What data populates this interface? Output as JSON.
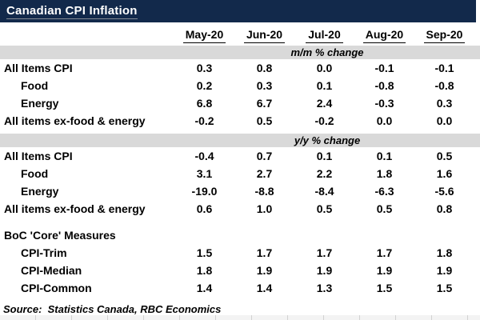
{
  "title": "Canadian CPI Inflation",
  "columns": [
    "May-20",
    "Jun-20",
    "Jul-20",
    "Aug-20",
    "Sep-20"
  ],
  "sections": [
    {
      "label": "m/m % change",
      "rows": [
        {
          "label": "All Items CPI",
          "values": [
            "0.3",
            "0.8",
            "0.0",
            "-0.1",
            "-0.1"
          ]
        },
        {
          "label": "Food",
          "values": [
            "0.2",
            "0.3",
            "0.1",
            "-0.8",
            "-0.8"
          ]
        },
        {
          "label": "Energy",
          "values": [
            "6.8",
            "6.7",
            "2.4",
            "-0.3",
            "0.3"
          ]
        },
        {
          "label": "All items ex-food & energy",
          "values": [
            "-0.2",
            "0.5",
            "-0.2",
            "0.0",
            "0.0"
          ]
        }
      ]
    },
    {
      "label": "y/y % change",
      "rows": [
        {
          "label": "All Items CPI",
          "values": [
            "-0.4",
            "0.7",
            "0.1",
            "0.1",
            "0.5"
          ]
        },
        {
          "label": "Food",
          "values": [
            "3.1",
            "2.7",
            "2.2",
            "1.8",
            "1.6"
          ]
        },
        {
          "label": "Energy",
          "values": [
            "-19.0",
            "-8.8",
            "-8.4",
            "-6.3",
            "-5.6"
          ]
        },
        {
          "label": "All items ex-food & energy",
          "values": [
            "0.6",
            "1.0",
            "0.5",
            "0.5",
            "0.8"
          ]
        }
      ]
    }
  ],
  "core": {
    "heading": "BoC 'Core' Measures",
    "rows": [
      {
        "label": "CPI-Trim",
        "values": [
          "1.5",
          "1.7",
          "1.7",
          "1.7",
          "1.8"
        ]
      },
      {
        "label": "CPI-Median",
        "values": [
          "1.8",
          "1.9",
          "1.9",
          "1.9",
          "1.9"
        ]
      },
      {
        "label": "CPI-Common",
        "values": [
          "1.4",
          "1.4",
          "1.3",
          "1.5",
          "1.5"
        ]
      }
    ]
  },
  "source": "Source:  Statistics Canada, RBC Economics",
  "colors": {
    "title_bar_bg": "#12294B",
    "title_text": "#FFFFFF",
    "section_band_bg": "#D9D9D9",
    "table_text": "#000000"
  },
  "chart_data": {
    "type": "table",
    "title": "Canadian CPI Inflation",
    "columns": [
      "May-20",
      "Jun-20",
      "Jul-20",
      "Aug-20",
      "Sep-20"
    ],
    "sections": [
      {
        "section": "m/m % change",
        "rows": [
          {
            "label": "All Items CPI",
            "values": [
              0.3,
              0.8,
              0.0,
              -0.1,
              -0.1
            ]
          },
          {
            "label": "Food",
            "values": [
              0.2,
              0.3,
              0.1,
              -0.8,
              -0.8
            ]
          },
          {
            "label": "Energy",
            "values": [
              6.8,
              6.7,
              2.4,
              -0.3,
              0.3
            ]
          },
          {
            "label": "All items ex-food & energy",
            "values": [
              -0.2,
              0.5,
              -0.2,
              0.0,
              0.0
            ]
          }
        ]
      },
      {
        "section": "y/y % change",
        "rows": [
          {
            "label": "All Items CPI",
            "values": [
              -0.4,
              0.7,
              0.1,
              0.1,
              0.5
            ]
          },
          {
            "label": "Food",
            "values": [
              3.1,
              2.7,
              2.2,
              1.8,
              1.6
            ]
          },
          {
            "label": "Energy",
            "values": [
              -19.0,
              -8.8,
              -8.4,
              -6.3,
              -5.6
            ]
          },
          {
            "label": "All items ex-food & energy",
            "values": [
              0.6,
              1.0,
              0.5,
              0.5,
              0.8
            ]
          }
        ]
      },
      {
        "section": "BoC 'Core' Measures",
        "rows": [
          {
            "label": "CPI-Trim",
            "values": [
              1.5,
              1.7,
              1.7,
              1.7,
              1.8
            ]
          },
          {
            "label": "CPI-Median",
            "values": [
              1.8,
              1.9,
              1.9,
              1.9,
              1.9
            ]
          },
          {
            "label": "CPI-Common",
            "values": [
              1.4,
              1.4,
              1.3,
              1.5,
              1.5
            ]
          }
        ]
      }
    ],
    "source": "Statistics Canada, RBC Economics"
  }
}
